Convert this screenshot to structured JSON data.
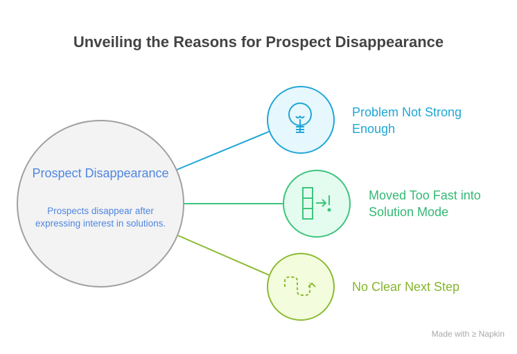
{
  "title": "Unveiling the Reasons for Prospect Disappearance",
  "center": {
    "title": "Prospect Disappearance",
    "description": "Prospects disappear after expressing interest in solutions."
  },
  "reasons": [
    {
      "label": "Problem Not Strong Enough",
      "icon": "lightbulb-icon",
      "color": "#1ea6d6",
      "fill": "#e6f7fd"
    },
    {
      "label": "Moved Too Fast into Solution Mode",
      "icon": "steps-arrow-exclamation-icon",
      "color": "#3cc47c",
      "fill": "#e4fbef"
    },
    {
      "label": "No Clear Next Step",
      "icon": "dashed-path-arrow-icon",
      "color": "#8bba32",
      "fill": "#f3fcdd"
    }
  ],
  "footer": {
    "made_with": "Made with",
    "brand": "Napkin"
  }
}
